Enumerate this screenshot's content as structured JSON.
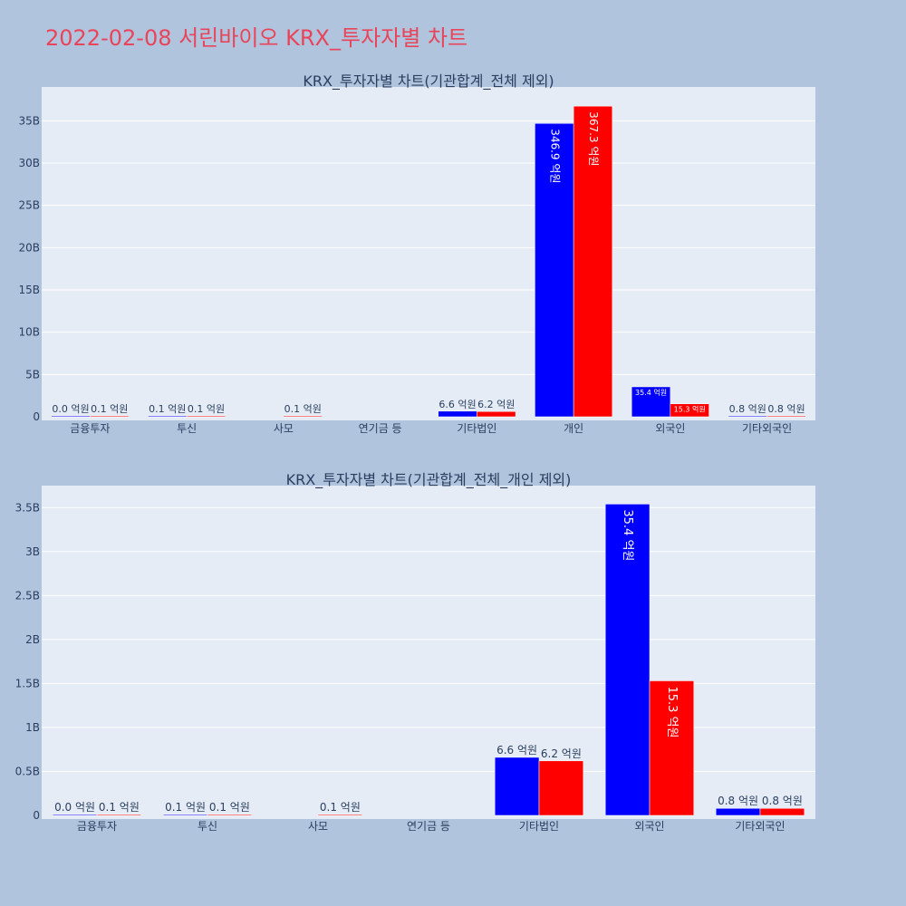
{
  "page": {
    "title": "2022-02-08 서린바이오 KRX_투자자별 차트",
    "title_color": "#e8455a",
    "background": "#b0c4de"
  },
  "colors": {
    "plot_bg": "#e5ecf6",
    "grid": "#ffffff",
    "text": "#2a3f5f",
    "series_a": "#0000ff",
    "series_b": "#ff0000"
  },
  "chart_data": [
    {
      "type": "bar",
      "title": "KRX_투자자별 차트(기관합계_전체 제외)",
      "categories": [
        "금융투자",
        "투신",
        "사모",
        "연기금 등",
        "기타법인",
        "개인",
        "외국인",
        "기타외국인"
      ],
      "ylim": [
        0,
        39000000000
      ],
      "yticks": [
        0,
        5000000000,
        10000000000,
        15000000000,
        20000000000,
        25000000000,
        30000000000,
        35000000000
      ],
      "ytick_labels": [
        "0",
        "5B",
        "10B",
        "15B",
        "20B",
        "25B",
        "30B",
        "35B"
      ],
      "grid": true,
      "series": [
        {
          "color": "#0000ff",
          "values": [
            0,
            10000000,
            null,
            null,
            660000000,
            34690000000,
            3540000000,
            80000000
          ],
          "labels": [
            "0.0 억원",
            "0.1 억원",
            "",
            "",
            "6.6 억원",
            "346.9 억원",
            "35.4 억원",
            "0.8 억원"
          ]
        },
        {
          "color": "#ff0000",
          "values": [
            10000000,
            10000000,
            10000000,
            null,
            620000000,
            36730000000,
            1530000000,
            80000000
          ],
          "labels": [
            "0.1 억원",
            "0.1 억원",
            "0.1 억원",
            "",
            "6.2 억원",
            "367.3 억원",
            "15.3 억원",
            "0.8 억원"
          ]
        }
      ]
    },
    {
      "type": "bar",
      "title": "KRX_투자자별 차트(기관합계_전체_개인 제외)",
      "categories": [
        "금융투자",
        "투신",
        "사모",
        "연기금 등",
        "기타법인",
        "외국인",
        "기타외국인"
      ],
      "ylim": [
        0,
        3750000000
      ],
      "yticks": [
        0,
        500000000,
        1000000000,
        1500000000,
        2000000000,
        2500000000,
        3000000000,
        3500000000
      ],
      "ytick_labels": [
        "0",
        "0.5B",
        "1B",
        "1.5B",
        "2B",
        "2.5B",
        "3B",
        "3.5B"
      ],
      "grid": true,
      "series": [
        {
          "color": "#0000ff",
          "values": [
            0,
            10000000,
            null,
            null,
            660000000,
            3540000000,
            80000000
          ],
          "labels": [
            "0.0 억원",
            "0.1 억원",
            "",
            "",
            "6.6 억원",
            "35.4 억원",
            "0.8 억원"
          ]
        },
        {
          "color": "#ff0000",
          "values": [
            10000000,
            10000000,
            10000000,
            null,
            620000000,
            1530000000,
            80000000
          ],
          "labels": [
            "0.1 억원",
            "0.1 억원",
            "0.1 억원",
            "",
            "6.2 억원",
            "15.3 억원",
            "0.8 억원"
          ]
        }
      ]
    }
  ]
}
